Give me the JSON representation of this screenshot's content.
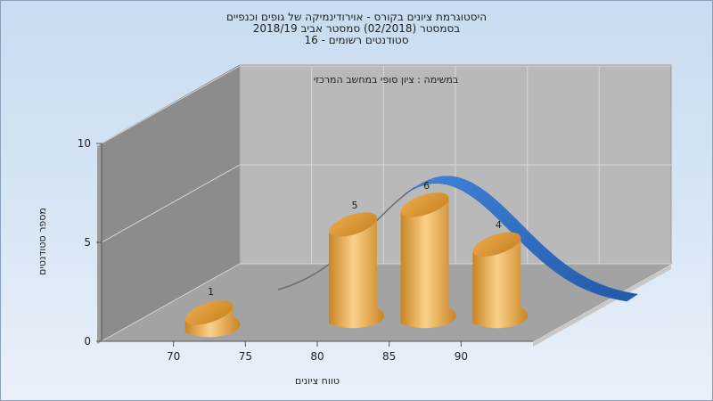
{
  "title": {
    "line1": "היסטוגרמת ציונים בקורס - אוירודינמיקה של גופים וכנפיים",
    "line2": "בסמסטר  (02/2018)  סמסטר אביב 2018/19",
    "line3": "סטודנטים רשומים - 16"
  },
  "chart_data": {
    "type": "bar",
    "subtitle": "במשימה : ציון סופי במחשב המרכזי",
    "xlabel": "טווח ציונים",
    "ylabel": "מספר סטודנטים",
    "x_ticks": [
      "70",
      "75",
      "80",
      "85",
      "90"
    ],
    "y_ticks": [
      "0",
      "5",
      "10"
    ],
    "ylim": [
      0,
      10
    ],
    "grid": true,
    "bars": [
      {
        "bin": 70,
        "value": 1
      },
      {
        "bin": 80,
        "value": 5
      },
      {
        "bin": 85,
        "value": 6
      },
      {
        "bin": 90,
        "value": 4
      }
    ],
    "curve": {
      "type": "normal-fit",
      "color": "#2f6fc6"
    }
  },
  "colors": {
    "bar_light": "#fbd08a",
    "bar_mid": "#e9a84a",
    "bar_dark": "#c98524",
    "back_wall": "#b9b9b9",
    "side_wall": "#8c8c8c",
    "floor": "#a3a3a3",
    "curve": "#2f6fc6"
  }
}
